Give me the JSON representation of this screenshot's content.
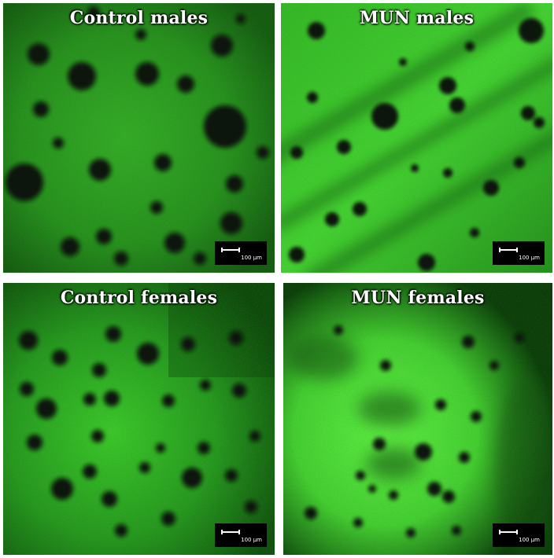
{
  "figure": {
    "panels": [
      {
        "id": "control-males",
        "title": "Control males",
        "scale_label": "100 µm"
      },
      {
        "id": "mun-males",
        "title": "MUN males",
        "scale_label": "100 µm"
      },
      {
        "id": "control-females",
        "title": "Control females",
        "scale_label": "100 µm"
      },
      {
        "id": "mun-females",
        "title": "MUN females",
        "scale_label": "100 µm"
      }
    ],
    "colors": {
      "signal": "#49d83a",
      "bright_signal": "#7bff5c",
      "background_dark": "#0c1f0a",
      "pore": "#070f06"
    }
  }
}
